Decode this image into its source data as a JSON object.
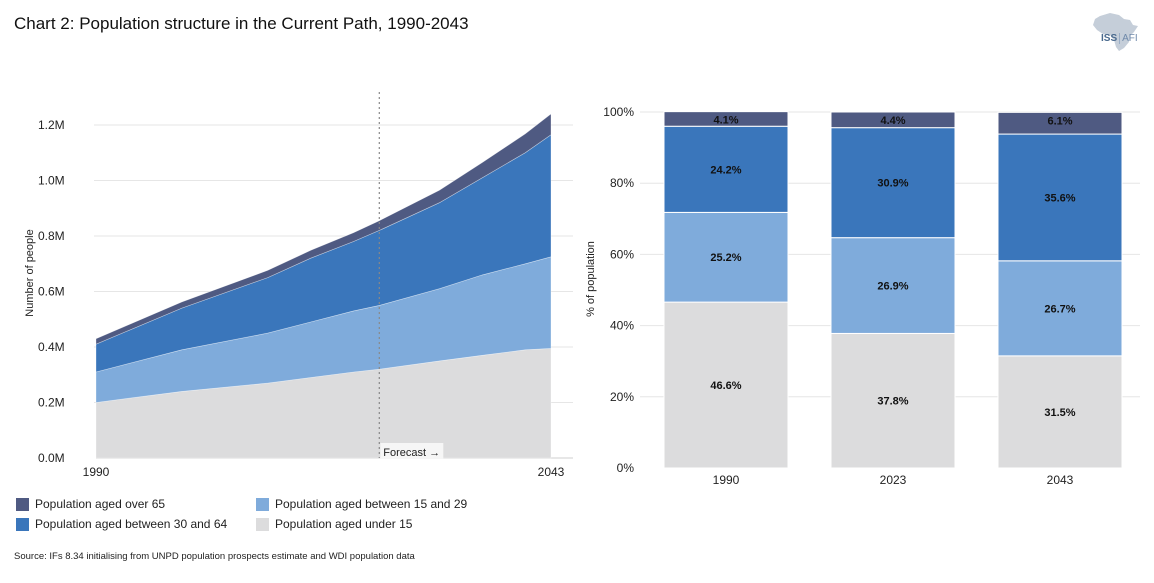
{
  "title": "Chart 2: Population structure in the Current Path, 1990-2043",
  "logo": {
    "name": "ISS",
    "suffix": "AFI"
  },
  "source": "Source: IFs 8.34 initialising from UNPD population prospects estimate and WDI population data",
  "colors": {
    "over65": "#4f5a82",
    "age30_64": "#3a76bb",
    "age15_29": "#7fabdb",
    "under15": "#dcdcdd"
  },
  "legend": [
    {
      "key": "over65",
      "label": "Population aged over 65"
    },
    {
      "key": "age30_64",
      "label": "Population aged between 30 and 64"
    },
    {
      "key": "age15_29",
      "label": "Population aged between 15 and 29"
    },
    {
      "key": "under15",
      "label": "Population aged under 15"
    }
  ],
  "chart_data": [
    {
      "type": "area",
      "stacked": true,
      "ylabel": "Number of people",
      "yticks": [
        "0.0M",
        "0.2M",
        "0.4M",
        "0.6M",
        "0.8M",
        "1.0M",
        "1.2M"
      ],
      "ylim": [
        0,
        1.2
      ],
      "x_range": [
        1990,
        2043
      ],
      "xtick_labels": [
        "1990",
        "2043"
      ],
      "forecast_start": 2023,
      "forecast_label": "Forecast →",
      "x": [
        1990,
        2000,
        2010,
        2015,
        2020,
        2023,
        2030,
        2035,
        2040,
        2043
      ],
      "series": [
        {
          "name": "Population aged under 15",
          "key": "under15",
          "values": [
            0.2,
            0.24,
            0.27,
            0.29,
            0.31,
            0.32,
            0.35,
            0.37,
            0.39,
            0.395
          ]
        },
        {
          "name": "Population aged between 15 and 29",
          "key": "age15_29",
          "values": [
            0.11,
            0.15,
            0.18,
            0.2,
            0.22,
            0.23,
            0.26,
            0.29,
            0.31,
            0.33
          ]
        },
        {
          "name": "Population aged between 30 and 64",
          "key": "age30_64",
          "values": [
            0.1,
            0.15,
            0.2,
            0.23,
            0.25,
            0.27,
            0.31,
            0.35,
            0.4,
            0.44
          ]
        },
        {
          "name": "Population aged over 65",
          "key": "over65",
          "values": [
            0.02,
            0.022,
            0.026,
            0.028,
            0.032,
            0.035,
            0.045,
            0.055,
            0.068,
            0.075
          ]
        }
      ]
    },
    {
      "type": "bar",
      "stacked": true,
      "percent": true,
      "ylabel": "% of population",
      "yticks": [
        "0%",
        "20%",
        "40%",
        "60%",
        "80%",
        "100%"
      ],
      "ylim": [
        0,
        100
      ],
      "categories": [
        "1990",
        "2023",
        "2043"
      ],
      "series": [
        {
          "name": "Population aged under 15",
          "key": "under15",
          "values": [
            46.6,
            37.8,
            31.5
          ],
          "labels": [
            "46.6%",
            "37.8%",
            "31.5%"
          ]
        },
        {
          "name": "Population aged between 15 and 29",
          "key": "age15_29",
          "values": [
            25.2,
            26.9,
            26.7
          ],
          "labels": [
            "25.2%",
            "26.9%",
            "26.7%"
          ]
        },
        {
          "name": "Population aged between 30 and 64",
          "key": "age30_64",
          "values": [
            24.2,
            30.9,
            35.6
          ],
          "labels": [
            "24.2%",
            "30.9%",
            "35.6%"
          ]
        },
        {
          "name": "Population aged over 65",
          "key": "over65",
          "values": [
            4.1,
            4.4,
            6.1
          ],
          "labels": [
            "4.1%",
            "4.4%",
            "6.1%"
          ]
        }
      ]
    }
  ]
}
